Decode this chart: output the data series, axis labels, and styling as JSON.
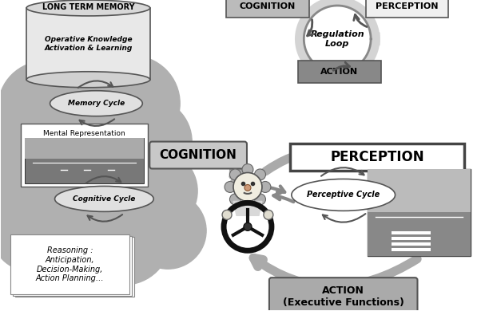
{
  "bg_color": "#ffffff",
  "ltm_label": "LONG TERM MEMORY",
  "ltm_text": "Operative Knowledge\nActivation & Learning",
  "memory_cycle_label": "Memory Cycle",
  "mental_rep_label": "Mental Representation",
  "cognitive_cycle_label": "Cognitive Cycle",
  "cognition_label": "COGNITION",
  "reasoning_text": "Reasoning :\nAnticipation,\nDecision-Making,\nAction Planning…",
  "perception_box_label": "PERCEPTION",
  "perceptive_cycle_label": "Perceptive Cycle",
  "action_box_label": "ACTION\n(Executive Functions)",
  "reg_cognition": "COGNITION",
  "reg_perception": "PERCEPTION",
  "reg_action": "ACTION",
  "reg_loop": "Regulation\nLoop",
  "cloud_color": "#b0b0b0",
  "cyl_face": "#e0e0e0",
  "cyl_edge": "#555555",
  "box_gray": "#a0a0a0",
  "arrow_gray": "#aaaaaa",
  "dark_arrow": "#666666"
}
